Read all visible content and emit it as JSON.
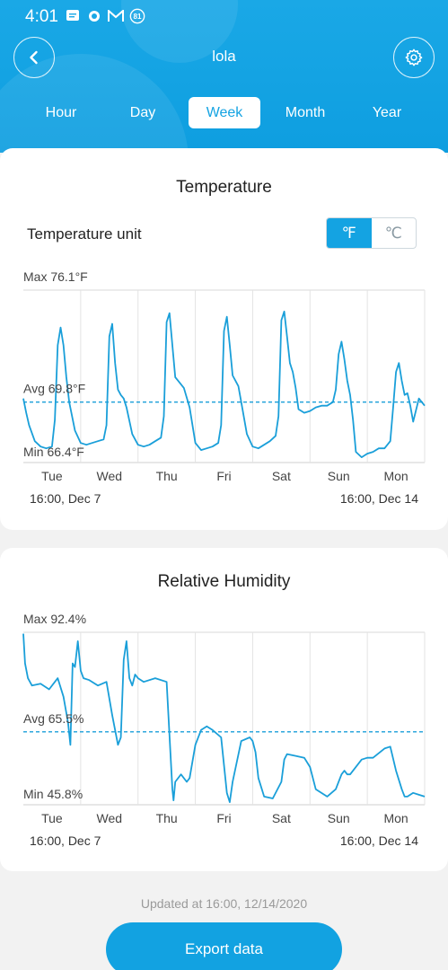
{
  "status": {
    "time": "4:01",
    "badge": "81"
  },
  "header": {
    "title": "lola"
  },
  "tabs": [
    {
      "label": "Hour",
      "active": false
    },
    {
      "label": "Day",
      "active": false
    },
    {
      "label": "Week",
      "active": true
    },
    {
      "label": "Month",
      "active": false
    },
    {
      "label": "Year",
      "active": false
    }
  ],
  "temperature": {
    "title": "Temperature",
    "unit_label": "Temperature unit",
    "unit_f": "℉",
    "unit_c": "℃",
    "selected_unit": "F",
    "start_label": "16:00, Dec 7",
    "end_label": "16:00, Dec 14"
  },
  "humidity": {
    "title": "Relative Humidity",
    "start_label": "16:00, Dec 7",
    "end_label": "16:00, Dec 14"
  },
  "footer": {
    "updated": "Updated at 16:00, 12/14/2020",
    "export_label": "Export data"
  },
  "chart_data": [
    {
      "type": "line",
      "title": "Temperature",
      "x_tick_labels": [
        "Tue",
        "Wed",
        "Thu",
        "Fri",
        "Sat",
        "Sun",
        "Mon"
      ],
      "max_label": "Max 76.1°F",
      "avg_label": "Avg 69.8°F",
      "min_label": "Min 66.4°F",
      "ylim": [
        66.4,
        76.1
      ],
      "avg": 69.8,
      "line_color": "#1a9fd9",
      "grid": true,
      "series": [
        {
          "x": [
            0,
            0.05,
            0.1,
            0.2,
            0.3,
            0.4,
            0.5,
            0.55,
            0.6,
            0.65,
            0.7,
            0.75,
            0.8,
            0.9,
            1.0,
            1.1,
            1.2,
            1.3,
            1.4,
            1.45,
            1.5,
            1.55,
            1.6,
            1.65,
            1.7,
            1.75,
            1.8,
            1.9,
            2.0,
            2.1,
            2.2,
            2.3,
            2.4,
            2.45,
            2.5,
            2.55,
            2.6,
            2.65,
            2.7,
            2.75,
            2.8,
            2.9,
            3.0,
            3.1,
            3.2,
            3.3,
            3.4,
            3.45,
            3.5,
            3.55,
            3.6,
            3.65,
            3.7,
            3.75,
            3.8,
            3.9,
            4.0,
            4.1,
            4.2,
            4.3,
            4.4,
            4.45,
            4.5,
            4.55,
            4.6,
            4.65,
            4.7,
            4.75,
            4.8,
            4.9,
            5.0,
            5.1,
            5.2,
            5.3,
            5.4,
            5.45,
            5.5,
            5.55,
            5.6,
            5.65,
            5.7,
            5.75,
            5.8,
            5.9,
            6.0,
            6.1,
            6.2,
            6.3,
            6.4,
            6.45,
            6.5,
            6.55,
            6.6,
            6.65,
            6.7,
            6.75,
            6.8,
            6.9,
            7.0
          ],
          "values": [
            70.0,
            69.2,
            68.5,
            67.6,
            67.3,
            67.2,
            67.3,
            68.8,
            73.0,
            74.0,
            73.0,
            71.2,
            69.8,
            68.2,
            67.5,
            67.4,
            67.5,
            67.6,
            67.7,
            68.5,
            73.5,
            74.2,
            72.0,
            70.5,
            70.2,
            70.0,
            69.5,
            68.0,
            67.4,
            67.3,
            67.4,
            67.6,
            67.8,
            69.0,
            74.3,
            74.8,
            73.0,
            71.2,
            71.0,
            70.8,
            70.6,
            69.5,
            67.5,
            67.1,
            67.2,
            67.3,
            67.5,
            68.5,
            73.8,
            74.6,
            73.0,
            71.3,
            71.0,
            70.7,
            69.8,
            68.0,
            67.3,
            67.2,
            67.4,
            67.6,
            67.9,
            69.0,
            74.4,
            74.9,
            73.5,
            72.0,
            71.5,
            70.6,
            69.4,
            69.2,
            69.3,
            69.5,
            69.6,
            69.6,
            69.8,
            70.5,
            72.5,
            73.2,
            72.2,
            71.0,
            70.2,
            68.8,
            67.0,
            66.7,
            66.9,
            67.0,
            67.2,
            67.2,
            67.6,
            69.5,
            71.5,
            72.0,
            71.0,
            70.2,
            70.3,
            69.6,
            68.7,
            70.0,
            69.6
          ]
        }
      ]
    },
    {
      "type": "line",
      "title": "Relative Humidity",
      "x_tick_labels": [
        "Tue",
        "Wed",
        "Thu",
        "Fri",
        "Sat",
        "Sun",
        "Mon"
      ],
      "max_label": "Max 92.4%",
      "avg_label": "Avg 65.5%",
      "min_label": "Min 45.8%",
      "ylim": [
        45.8,
        92.4
      ],
      "avg": 65.5,
      "line_color": "#1a9fd9",
      "grid": true,
      "series": [
        {
          "x": [
            0,
            0.03,
            0.08,
            0.15,
            0.3,
            0.45,
            0.6,
            0.7,
            0.78,
            0.82,
            0.86,
            0.9,
            0.95,
            1.0,
            1.05,
            1.15,
            1.3,
            1.45,
            1.55,
            1.65,
            1.7,
            1.75,
            1.8,
            1.85,
            1.9,
            1.95,
            2.0,
            2.1,
            2.3,
            2.5,
            2.6,
            2.62,
            2.65,
            2.75,
            2.85,
            2.9,
            3.0,
            3.1,
            3.2,
            3.3,
            3.45,
            3.55,
            3.6,
            3.65,
            3.8,
            3.95,
            4.0,
            4.05,
            4.1,
            4.2,
            4.35,
            4.5,
            4.55,
            4.6,
            4.75,
            4.9,
            5.0,
            5.1,
            5.3,
            5.45,
            5.55,
            5.6,
            5.65,
            5.7,
            5.9,
            6.0,
            6.1,
            6.3,
            6.4,
            6.5,
            6.6,
            6.65,
            6.7,
            6.8,
            6.9,
            7.0
          ],
          "values": [
            92.0,
            84.0,
            80.0,
            78.0,
            78.5,
            77.0,
            80.0,
            75.0,
            68.0,
            62.0,
            84.0,
            83.0,
            90.0,
            82.0,
            80.0,
            79.5,
            78.0,
            79.0,
            70.0,
            62.0,
            64.0,
            85.0,
            90.0,
            80.0,
            78.0,
            81.0,
            80.0,
            79.0,
            80.0,
            79.0,
            50.0,
            47.0,
            52.0,
            54.0,
            52.0,
            53.0,
            62.0,
            66.0,
            67.0,
            66.0,
            64.0,
            49.0,
            46.5,
            52.0,
            63.0,
            64.0,
            63.0,
            60.0,
            53.0,
            48.0,
            47.5,
            52.0,
            58.0,
            59.5,
            59.0,
            58.5,
            56.0,
            50.0,
            48.0,
            50.0,
            54.0,
            55.0,
            54.0,
            54.0,
            58.0,
            58.5,
            58.5,
            61.0,
            61.5,
            55.0,
            50.0,
            48.0,
            48.0,
            49.0,
            48.5,
            48.0
          ]
        }
      ]
    }
  ]
}
